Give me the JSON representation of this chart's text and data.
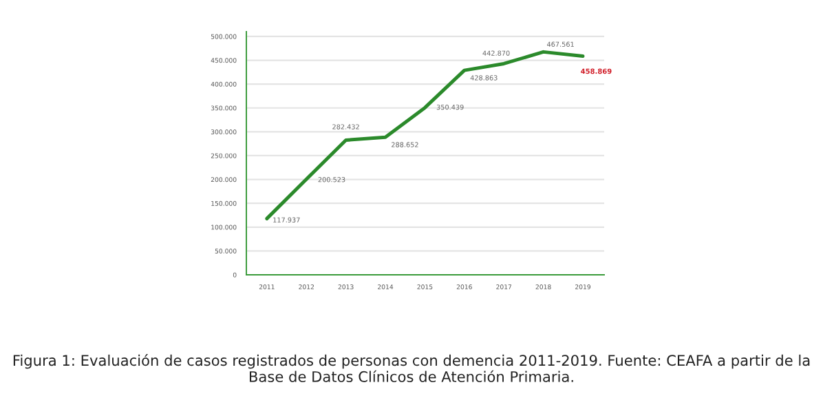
{
  "chart_data": {
    "type": "line",
    "categories": [
      "2011",
      "2012",
      "2013",
      "2014",
      "2015",
      "2016",
      "2017",
      "2018",
      "2019"
    ],
    "series": [
      {
        "color": "#2b8a2b",
        "values": [
          117937,
          200523,
          282432,
          288652,
          350439,
          428863,
          442870,
          467561,
          458869
        ],
        "value_labels": [
          "117.937",
          "200.523",
          "282.432",
          "288.652",
          "350.439",
          "428.863",
          "442.870",
          "467.561",
          "458.869"
        ]
      }
    ],
    "ylim": [
      0,
      510000
    ],
    "yticks": [
      0,
      {
        "value": 50000,
        "label": "50.000"
      },
      {
        "value": 100000,
        "label": "100.000"
      },
      {
        "value": 150000,
        "label": "150.000"
      },
      {
        "value": 200000,
        "label": "200.000"
      },
      {
        "value": 250000,
        "label": "250.000"
      },
      {
        "value": 300000,
        "label": "300.000"
      },
      {
        "value": 350000,
        "label": "350.000"
      },
      {
        "value": 400000,
        "label": "400.000"
      },
      {
        "value": 450000,
        "label": "450.000"
      },
      {
        "value": 500000,
        "label": "500.000"
      }
    ],
    "grid": "y",
    "marker": "none",
    "line_style": "solid",
    "annotations": [
      "Figura 1: Evaluación de casos registrados de personas con demencia 2011-2019. Fuente: CEAFA a partir de la Base de Datos Clínicos de Atención Primaria."
    ]
  }
}
